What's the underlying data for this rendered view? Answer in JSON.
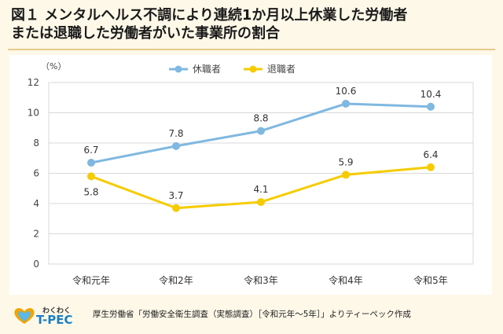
{
  "header": {
    "title_line1": "図１ メンタルヘルス不調により連続1か月以上休業した労働者",
    "title_line2": "または退職した労働者がいた事業所の割合"
  },
  "chart_data": {
    "type": "line",
    "unit_label": "（%）",
    "categories": [
      "令和元年",
      "令和2年",
      "令和3年",
      "令和4年",
      "令和5年"
    ],
    "series": [
      {
        "name": "休職者",
        "values": [
          6.7,
          7.8,
          8.8,
          10.6,
          10.4
        ],
        "color": "#7fb8e0"
      },
      {
        "name": "退職者",
        "values": [
          5.8,
          3.7,
          4.1,
          5.9,
          6.4
        ],
        "color": "#f5cc00"
      }
    ],
    "ylim": [
      0,
      12
    ],
    "yticks": [
      0,
      2,
      4,
      6,
      8,
      10,
      12
    ],
    "grid": true,
    "legend_position": "top-center"
  },
  "footer": {
    "logo_small": "わくわく",
    "logo_name": "T-PEC",
    "source": "厚生労働省「労働安全衛生調査（実態調査）［令和元年～5年］」よりティーペック作成"
  }
}
